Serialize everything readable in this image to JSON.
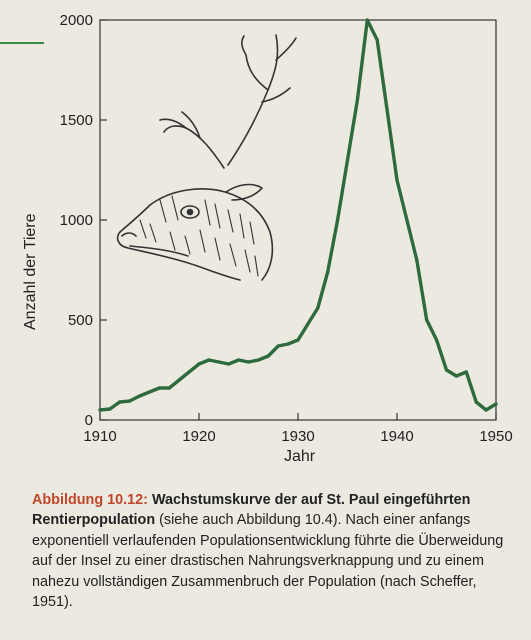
{
  "chart_data": {
    "type": "line",
    "xlabel": "Jahr",
    "ylabel": "Anzahl der Tiere",
    "xlim": [
      1910,
      1950
    ],
    "ylim": [
      0,
      2000
    ],
    "x_ticks": [
      1910,
      1920,
      1930,
      1940,
      1950
    ],
    "y_ticks": [
      0,
      500,
      1000,
      1500,
      2000
    ],
    "grid": false,
    "line_color": "#2e6b3c",
    "illustration": "reindeer-head",
    "series": [
      {
        "x": [
          1910,
          1911,
          1912,
          1913,
          1914,
          1915,
          1916,
          1917,
          1918,
          1919,
          1920,
          1921,
          1922,
          1923,
          1924,
          1925,
          1926,
          1927,
          1928,
          1929,
          1930,
          1931,
          1932,
          1933,
          1934,
          1935,
          1936,
          1937,
          1938,
          1939,
          1940,
          1941,
          1942,
          1943,
          1944,
          1945,
          1946,
          1947,
          1948,
          1949,
          1950
        ],
        "y": [
          50,
          55,
          90,
          95,
          120,
          140,
          160,
          160,
          200,
          240,
          280,
          300,
          290,
          280,
          300,
          290,
          300,
          320,
          370,
          380,
          400,
          480,
          560,
          740,
          1000,
          1300,
          1600,
          2000,
          1900,
          1550,
          1200,
          1000,
          800,
          500,
          400,
          250,
          220,
          240,
          90,
          50,
          80
        ]
      }
    ]
  },
  "caption": {
    "label": "Abbildung 10.12:",
    "head": "Wachstumskurve der auf St. Paul eingeführten Rentierpopulation",
    "body": " (siehe auch Abbildung 10.4). Nach einer anfangs exponentiell verlaufenden Populationsentwicklung führte die Überweidung auf der Insel zu einer drastischen Nahrungsverknappung und zu einem nahezu vollständigen Zusammenbruch der Population (nach Scheffer, 1951)."
  }
}
